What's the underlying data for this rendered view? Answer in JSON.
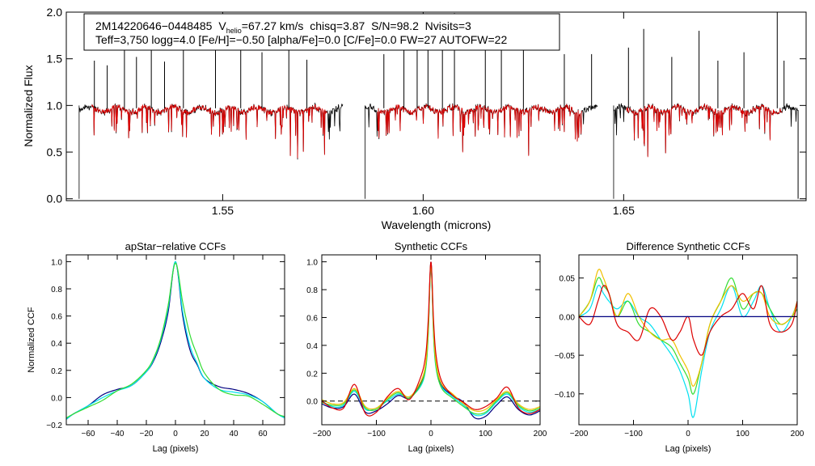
{
  "chart_data": [
    {
      "id": "spectrum",
      "type": "line",
      "title": "",
      "xlabel": "Wavelength (microns)",
      "ylabel": "Normalized Flux",
      "xlim": [
        1.511,
        1.6955
      ],
      "ylim": [
        -0.02,
        2.0
      ],
      "xticks": [
        1.55,
        1.6,
        1.65
      ],
      "xtick_labels": [
        "1.55",
        "1.60",
        "1.65"
      ],
      "yticks": [
        0.0,
        0.5,
        1.0,
        1.5,
        2.0
      ],
      "ytick_labels": [
        "0.0",
        "0.5",
        "1.0",
        "1.5",
        "2.0"
      ],
      "info_line1_star": "2M14220646−0448485",
      "info_line1_vhelio_prefix": "V",
      "info_line1_vhelio_sub": "helio",
      "info_line1_rest": "=67.27 km/s  chisq=3.87  S/N=98.2  Nvisits=3",
      "info_line2": "Teff=3,750 logg=4.0 [Fe/H]=−0.50 [alpha/Fe]=0.0 [C/Fe]=0.0 FW=27 AUTOFW=22",
      "series": [
        {
          "name": "observed",
          "color": "#000000"
        },
        {
          "name": "model",
          "color": "#dd0000"
        }
      ],
      "chips": [
        [
          1.5142,
          1.58
        ],
        [
          1.5855,
          1.6435
        ],
        [
          1.6475,
          1.6935
        ]
      ],
      "emission_spikes": [
        [
          1.518,
          1.48
        ],
        [
          1.5212,
          1.43
        ],
        [
          1.5255,
          1.75
        ],
        [
          1.5285,
          1.52
        ],
        [
          1.5322,
          1.88
        ],
        [
          1.5355,
          1.47
        ],
        [
          1.5402,
          1.62
        ],
        [
          1.5482,
          1.72
        ],
        [
          1.5545,
          1.66
        ],
        [
          1.5598,
          1.57
        ],
        [
          1.5665,
          1.82
        ],
        [
          1.571,
          1.49
        ],
        [
          1.5902,
          1.55
        ],
        [
          1.5952,
          1.62
        ],
        [
          1.5985,
          1.63
        ],
        [
          1.6012,
          1.85
        ],
        [
          1.6048,
          1.6
        ],
        [
          1.6078,
          1.99
        ],
        [
          1.6155,
          1.75
        ],
        [
          1.6195,
          1.84
        ],
        [
          1.625,
          1.75
        ],
        [
          1.6352,
          1.55
        ],
        [
          1.642,
          1.55
        ],
        [
          1.6512,
          1.62
        ],
        [
          1.655,
          1.82
        ],
        [
          1.662,
          1.52
        ],
        [
          1.6688,
          1.8
        ],
        [
          1.6735,
          1.48
        ],
        [
          1.68,
          1.57
        ],
        [
          1.6883,
          2.0
        ],
        [
          1.69,
          1.48
        ]
      ]
    },
    {
      "id": "apstar_ccf",
      "type": "line",
      "title": "apStar−relative CCFs",
      "xlabel": "Lag (pixels)",
      "ylabel": "Normalized CCF",
      "xlim": [
        -75,
        75
      ],
      "ylim": [
        -0.2,
        1.05
      ],
      "xticks": [
        -60,
        -40,
        -20,
        0,
        20,
        40,
        60
      ],
      "xtick_labels": [
        "−60",
        "−40",
        "−20",
        "0",
        "20",
        "40",
        "60"
      ],
      "yticks": [
        -0.2,
        0.0,
        0.2,
        0.4,
        0.6,
        0.8,
        1.0
      ],
      "ytick_labels": [
        "−0.2",
        "0.0",
        "0.2",
        "0.4",
        "0.6",
        "0.8",
        "1.0"
      ],
      "series": [
        {
          "name": "visit 1",
          "color": "#000080",
          "x": [
            -75,
            -70,
            -60,
            -50,
            -40,
            -30,
            -20,
            -15,
            -10,
            -5,
            0,
            5,
            10,
            15,
            20,
            30,
            40,
            50,
            60,
            70,
            75
          ],
          "y": [
            -0.16,
            -0.12,
            -0.06,
            0.02,
            0.06,
            0.09,
            0.19,
            0.27,
            0.41,
            0.63,
            1.0,
            0.6,
            0.35,
            0.24,
            0.14,
            0.08,
            0.06,
            0.03,
            -0.03,
            -0.12,
            -0.14
          ]
        },
        {
          "name": "visit 2",
          "color": "#00e0f0",
          "x": [
            -75,
            -70,
            -60,
            -50,
            -40,
            -30,
            -20,
            -15,
            -10,
            -5,
            0,
            5,
            10,
            15,
            20,
            30,
            40,
            50,
            60,
            70,
            75
          ],
          "y": [
            -0.16,
            -0.12,
            -0.06,
            0.0,
            0.05,
            0.09,
            0.19,
            0.28,
            0.43,
            0.66,
            1.0,
            0.63,
            0.38,
            0.25,
            0.14,
            0.06,
            0.04,
            0.02,
            -0.03,
            -0.12,
            -0.15
          ]
        },
        {
          "name": "visit 3",
          "color": "#33dd33",
          "x": [
            -75,
            -70,
            -60,
            -50,
            -40,
            -30,
            -20,
            -15,
            -10,
            -5,
            0,
            5,
            10,
            15,
            20,
            30,
            40,
            50,
            60,
            70,
            75
          ],
          "y": [
            -0.15,
            -0.12,
            -0.07,
            -0.02,
            0.05,
            0.1,
            0.2,
            0.29,
            0.44,
            0.68,
            0.99,
            0.7,
            0.46,
            0.31,
            0.18,
            0.06,
            0.02,
            0.01,
            -0.05,
            -0.12,
            -0.14
          ]
        }
      ]
    },
    {
      "id": "synthetic_ccf",
      "type": "line",
      "title": "Synthetic CCFs",
      "xlabel": "Lag (pixels)",
      "ylabel": "",
      "xlim": [
        -200,
        200
      ],
      "ylim": [
        -0.17,
        1.05
      ],
      "xticks": [
        -200,
        -100,
        0,
        100,
        200
      ],
      "xtick_labels": [
        "−200",
        "−100",
        "0",
        "100",
        "200"
      ],
      "yticks": [
        0.0,
        0.2,
        0.4,
        0.6,
        0.8,
        1.0
      ],
      "ytick_labels": [
        "0.0",
        "0.2",
        "0.4",
        "0.6",
        "0.8",
        "1.0"
      ],
      "reference_line": 0.0,
      "series": [
        {
          "name": "visit 1",
          "color": "#000080",
          "x": [
            -200,
            -180,
            -160,
            -140,
            -120,
            -100,
            -80,
            -60,
            -40,
            -20,
            -10,
            -5,
            0,
            5,
            10,
            20,
            40,
            60,
            80,
            100,
            120,
            140,
            160,
            180,
            200
          ],
          "y": [
            -0.02,
            -0.05,
            -0.04,
            0.05,
            -0.08,
            -0.07,
            -0.02,
            0.04,
            0.02,
            0.12,
            0.25,
            0.5,
            1.0,
            0.48,
            0.24,
            0.11,
            0.04,
            -0.01,
            -0.12,
            -0.11,
            -0.03,
            0.03,
            -0.06,
            -0.1,
            -0.07
          ]
        },
        {
          "name": "visit 2",
          "color": "#00e0f0",
          "x": [
            -200,
            -180,
            -160,
            -140,
            -120,
            -100,
            -80,
            -60,
            -40,
            -20,
            -10,
            -5,
            0,
            5,
            10,
            20,
            40,
            60,
            80,
            100,
            120,
            140,
            160,
            180,
            200
          ],
          "y": [
            0.0,
            -0.04,
            -0.03,
            0.07,
            -0.06,
            -0.05,
            0.0,
            0.05,
            0.03,
            0.1,
            0.22,
            0.47,
            0.97,
            0.45,
            0.22,
            0.1,
            0.03,
            -0.03,
            -0.1,
            -0.09,
            -0.01,
            0.05,
            -0.04,
            -0.08,
            -0.06
          ]
        },
        {
          "name": "visit 3",
          "color": "#33dd33",
          "x": [
            -200,
            -180,
            -160,
            -140,
            -120,
            -100,
            -80,
            -60,
            -40,
            -20,
            -10,
            -5,
            0,
            5,
            10,
            20,
            40,
            60,
            80,
            100,
            120,
            140,
            160,
            180,
            200
          ],
          "y": [
            -0.01,
            -0.03,
            -0.02,
            0.08,
            -0.05,
            -0.06,
            0.01,
            0.06,
            0.02,
            0.11,
            0.23,
            0.48,
            0.98,
            0.46,
            0.23,
            0.09,
            0.02,
            -0.04,
            -0.09,
            -0.08,
            0.0,
            0.06,
            -0.03,
            -0.07,
            -0.05
          ]
        },
        {
          "name": "visit 4",
          "color": "#f0c000",
          "x": [
            -200,
            -180,
            -160,
            -140,
            -120,
            -100,
            -80,
            -60,
            -40,
            -20,
            -10,
            -5,
            0,
            5,
            10,
            20,
            40,
            60,
            80,
            100,
            120,
            140,
            160,
            180,
            200
          ],
          "y": [
            0.01,
            -0.02,
            -0.01,
            0.09,
            -0.04,
            -0.05,
            0.02,
            0.07,
            0.03,
            0.13,
            0.26,
            0.52,
            0.99,
            0.5,
            0.26,
            0.12,
            0.05,
            -0.02,
            -0.07,
            -0.06,
            0.01,
            0.07,
            -0.02,
            -0.06,
            -0.04
          ]
        },
        {
          "name": "visit 5",
          "color": "#dd0000",
          "x": [
            -200,
            -180,
            -160,
            -140,
            -120,
            -100,
            -80,
            -60,
            -40,
            -20,
            -10,
            -5,
            0,
            5,
            10,
            20,
            40,
            60,
            80,
            100,
            120,
            140,
            160,
            180,
            200
          ],
          "y": [
            0.0,
            -0.05,
            -0.05,
            0.12,
            -0.09,
            -0.08,
            0.03,
            0.09,
            0.01,
            0.16,
            0.32,
            0.58,
            1.0,
            0.56,
            0.31,
            0.14,
            0.04,
            -0.01,
            -0.06,
            -0.04,
            0.02,
            0.1,
            -0.05,
            -0.09,
            -0.06
          ]
        }
      ]
    },
    {
      "id": "difference_ccf",
      "type": "line",
      "title": "Difference Synthetic CCFs",
      "xlabel": "Lag (pixels)",
      "ylabel": "",
      "xlim": [
        -200,
        200
      ],
      "ylim": [
        -0.14,
        0.08
      ],
      "xticks": [
        -200,
        -100,
        0,
        100,
        200
      ],
      "xtick_labels": [
        "−200",
        "−100",
        "0",
        "100",
        "200"
      ],
      "yticks": [
        -0.1,
        -0.05,
        0.0,
        0.05
      ],
      "ytick_labels": [
        "−0.10",
        "−0.05",
        "0.00",
        "0.05"
      ],
      "reference_line": 0.0,
      "reference_color": "#000080",
      "series": [
        {
          "name": "visit 1",
          "color": "#00e0f0",
          "x": [
            -200,
            -180,
            -165,
            -155,
            -145,
            -130,
            -110,
            -90,
            -70,
            -50,
            -30,
            -15,
            0,
            10,
            25,
            40,
            60,
            80,
            100,
            120,
            135,
            150,
            170,
            190,
            200
          ],
          "y": [
            0.0,
            0.01,
            0.04,
            0.03,
            0.02,
            0.01,
            0.02,
            0.0,
            -0.01,
            -0.03,
            -0.05,
            -0.07,
            -0.1,
            -0.13,
            -0.07,
            -0.02,
            0.01,
            0.04,
            0.0,
            0.02,
            0.04,
            0.01,
            -0.02,
            0.0,
            0.02
          ]
        },
        {
          "name": "visit 2",
          "color": "#33dd33",
          "x": [
            -200,
            -180,
            -165,
            -155,
            -145,
            -130,
            -110,
            -90,
            -70,
            -50,
            -30,
            -15,
            0,
            10,
            25,
            40,
            60,
            80,
            100,
            120,
            135,
            150,
            170,
            190,
            200
          ],
          "y": [
            0.0,
            0.02,
            0.05,
            0.04,
            0.03,
            0.0,
            0.02,
            -0.01,
            -0.02,
            -0.03,
            -0.04,
            -0.06,
            -0.08,
            -0.1,
            -0.06,
            -0.01,
            0.02,
            0.05,
            0.01,
            0.03,
            0.03,
            0.01,
            -0.01,
            0.0,
            0.01
          ]
        },
        {
          "name": "visit 3",
          "color": "#f0c000",
          "x": [
            -200,
            -180,
            -165,
            -155,
            -145,
            -130,
            -110,
            -90,
            -70,
            -50,
            -30,
            -15,
            0,
            10,
            25,
            40,
            60,
            80,
            100,
            120,
            135,
            150,
            170,
            190,
            200
          ],
          "y": [
            0.0,
            0.02,
            0.06,
            0.05,
            0.03,
            0.0,
            0.03,
            0.0,
            -0.02,
            -0.03,
            -0.03,
            -0.05,
            -0.07,
            -0.09,
            -0.06,
            -0.01,
            0.02,
            0.04,
            0.02,
            0.03,
            0.03,
            0.0,
            -0.01,
            0.0,
            0.02
          ]
        },
        {
          "name": "visit 4",
          "color": "#dd0000",
          "x": [
            -200,
            -180,
            -165,
            -155,
            -145,
            -130,
            -110,
            -90,
            -70,
            -50,
            -30,
            -15,
            0,
            10,
            25,
            40,
            60,
            80,
            100,
            120,
            135,
            150,
            170,
            190,
            200
          ],
          "y": [
            0.0,
            -0.01,
            0.02,
            0.04,
            0.03,
            -0.01,
            -0.02,
            -0.03,
            0.01,
            0.0,
            -0.03,
            -0.02,
            0.0,
            -0.03,
            -0.05,
            -0.02,
            0.0,
            0.01,
            0.03,
            0.01,
            0.04,
            -0.01,
            -0.02,
            -0.01,
            0.02
          ]
        }
      ]
    }
  ]
}
